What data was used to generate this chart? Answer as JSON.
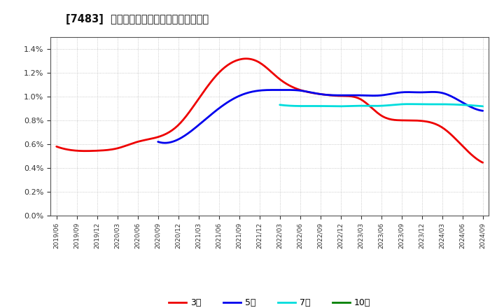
{
  "title": "[7483]  経常利益マージンの標準偏差の推移",
  "ylim": [
    0.0,
    0.015
  ],
  "yticks": [
    0.0,
    0.002,
    0.004,
    0.006,
    0.008,
    0.01,
    0.012,
    0.014
  ],
  "background_color": "#ffffff",
  "plot_bg_color": "#ffffff",
  "grid_color": "#bbbbbb",
  "series": {
    "3year": {
      "color": "#ee0000",
      "label": "3年",
      "linewidth": 2.0,
      "x": [
        0,
        1,
        2,
        3,
        4,
        5,
        6,
        7,
        8,
        9,
        10,
        11,
        12,
        13,
        14,
        15,
        16,
        17,
        18,
        19,
        20,
        21
      ],
      "y": [
        0.0058,
        0.00545,
        0.00545,
        0.00565,
        0.0062,
        0.0066,
        0.0076,
        0.0098,
        0.012,
        0.0131,
        0.01285,
        0.01145,
        0.01055,
        0.0102,
        0.01005,
        0.00975,
        0.0084,
        0.008,
        0.00795,
        0.0074,
        0.00585,
        0.00445
      ]
    },
    "5year": {
      "color": "#0000ee",
      "label": "5年",
      "linewidth": 2.0,
      "x": [
        5,
        6,
        7,
        8,
        9,
        10,
        11,
        12,
        13,
        14,
        15,
        16,
        17,
        18,
        19,
        20,
        21
      ],
      "y": [
        0.0062,
        0.0064,
        0.0076,
        0.009,
        0.01005,
        0.0105,
        0.01055,
        0.0105,
        0.0102,
        0.0101,
        0.0101,
        0.0101,
        0.01035,
        0.01035,
        0.0103,
        0.0095,
        0.0088
      ]
    },
    "7year": {
      "color": "#00dddd",
      "label": "7年",
      "linewidth": 2.0,
      "x": [
        11,
        12,
        13,
        14,
        15,
        16,
        17,
        18,
        19,
        20,
        21
      ],
      "y": [
        0.0093,
        0.0092,
        0.0092,
        0.00918,
        0.00922,
        0.00922,
        0.00935,
        0.00935,
        0.00935,
        0.0093,
        0.00918
      ]
    },
    "10year": {
      "color": "#008000",
      "label": "10年",
      "linewidth": 2.0,
      "x": [],
      "y": []
    }
  },
  "xtick_labels": [
    "2019/06",
    "2019/09",
    "2019/12",
    "2020/03",
    "2020/06",
    "2020/09",
    "2020/12",
    "2021/03",
    "2021/06",
    "2021/09",
    "2021/12",
    "2022/03",
    "2022/06",
    "2022/09",
    "2022/12",
    "2023/03",
    "2023/06",
    "2023/09",
    "2023/12",
    "2024/03",
    "2024/06",
    "2024/09"
  ],
  "legend_labels": [
    "3年",
    "5年",
    "7年",
    "10年"
  ],
  "legend_colors": [
    "#ee0000",
    "#0000ee",
    "#00dddd",
    "#008000"
  ]
}
